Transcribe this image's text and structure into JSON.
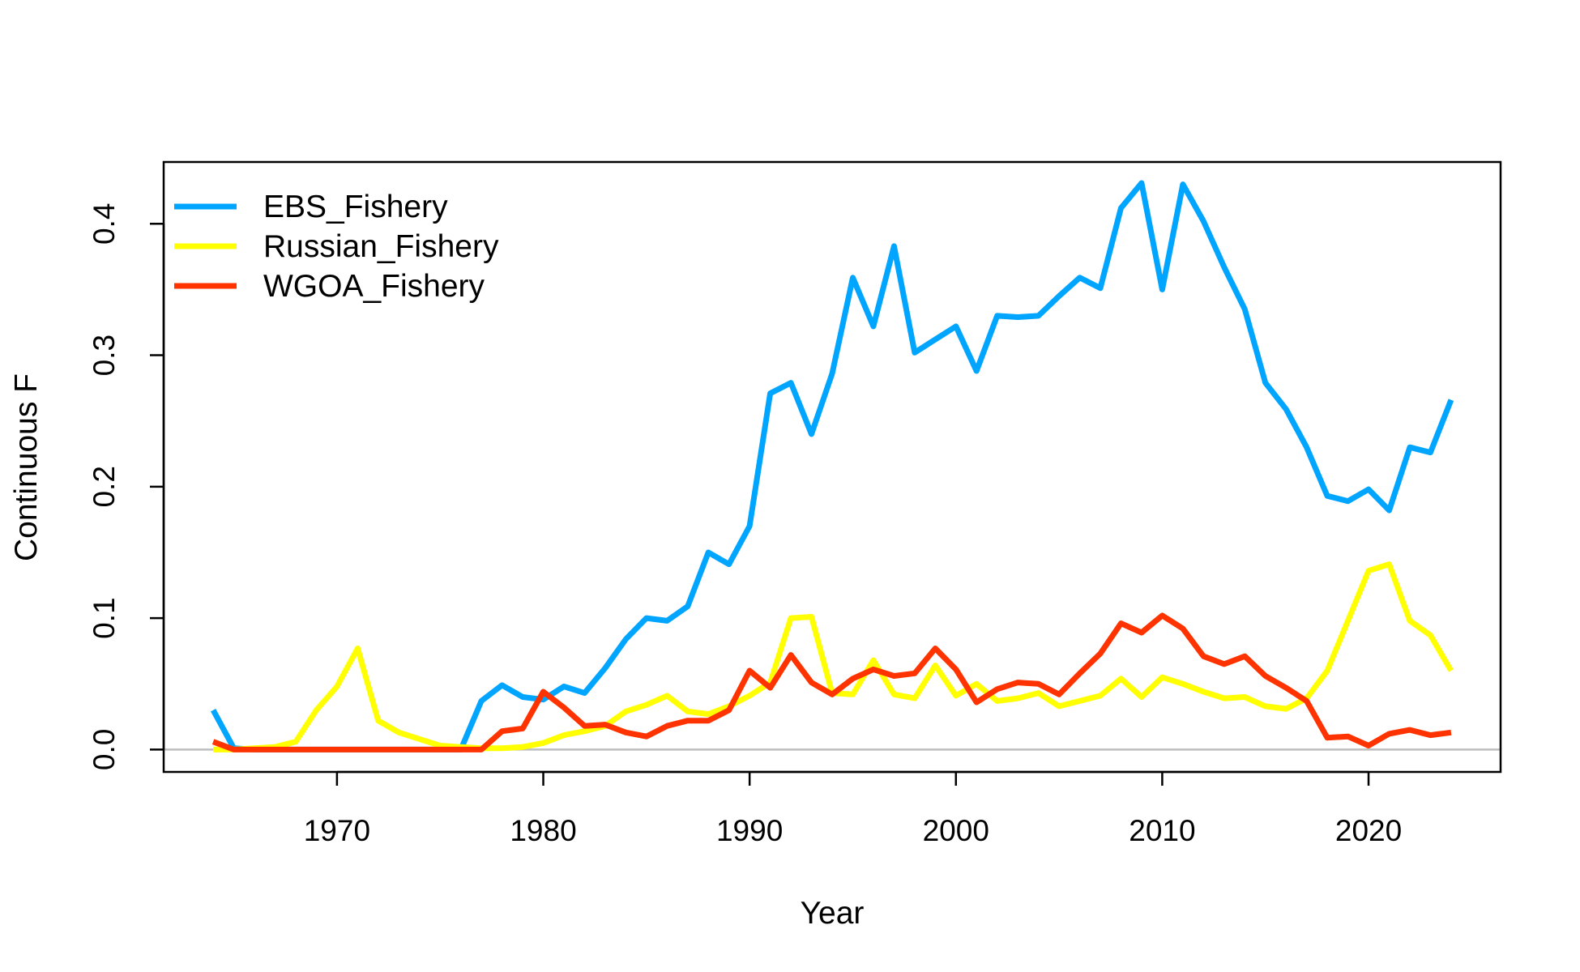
{
  "chart_data": {
    "type": "line",
    "title": "",
    "xlabel": "Year",
    "ylabel": "Continuous F",
    "xlim": [
      1961.6,
      2026.4
    ],
    "ylim": [
      -0.017,
      0.447
    ],
    "xticks": [
      1970,
      1980,
      1990,
      2000,
      2010,
      2020
    ],
    "yticks": [
      0.0,
      0.1,
      0.2,
      0.3,
      0.4
    ],
    "ytick_labels": [
      "0.0",
      "0.1",
      "0.2",
      "0.3",
      "0.4"
    ],
    "reference_line": {
      "y": 0,
      "color": "#BEBEBE"
    },
    "legend_position": "top-left",
    "grid": false,
    "x": [
      1964,
      1965,
      1966,
      1967,
      1968,
      1969,
      1970,
      1971,
      1972,
      1973,
      1974,
      1975,
      1976,
      1977,
      1978,
      1979,
      1980,
      1981,
      1982,
      1983,
      1984,
      1985,
      1986,
      1987,
      1988,
      1989,
      1990,
      1991,
      1992,
      1993,
      1994,
      1995,
      1996,
      1997,
      1998,
      1999,
      2000,
      2001,
      2002,
      2003,
      2004,
      2005,
      2006,
      2007,
      2008,
      2009,
      2010,
      2011,
      2012,
      2013,
      2014,
      2015,
      2016,
      2017,
      2018,
      2019,
      2020,
      2021,
      2022,
      2023,
      2024
    ],
    "series": [
      {
        "name": "EBS_Fishery",
        "color": "#00A5FF",
        "values": [
          0.03,
          0.001,
          0,
          0,
          0,
          0,
          0,
          0,
          0,
          0,
          0,
          0,
          0,
          0.037,
          0.049,
          0.04,
          0.038,
          0.048,
          0.043,
          0.062,
          0.084,
          0.1,
          0.098,
          0.109,
          0.15,
          0.141,
          0.17,
          0.271,
          0.279,
          0.24,
          0.286,
          0.359,
          0.322,
          0.383,
          0.302,
          0.312,
          0.322,
          0.288,
          0.33,
          0.329,
          0.33,
          0.345,
          0.359,
          0.351,
          0.412,
          0.431,
          0.35,
          0.43,
          0.402,
          0.367,
          0.335,
          0.279,
          0.259,
          0.23,
          0.193,
          0.189,
          0.198,
          0.182,
          0.23,
          0.226,
          0.266
        ]
      },
      {
        "name": "Russian_Fishery",
        "color": "#FFFF00",
        "values": [
          0,
          0,
          0.001,
          0.002,
          0.006,
          0.03,
          0.048,
          0.077,
          0.022,
          0.013,
          0.008,
          0.003,
          0.002,
          0.001,
          0.001,
          0.002,
          0.005,
          0.011,
          0.014,
          0.018,
          0.029,
          0.034,
          0.041,
          0.029,
          0.027,
          0.033,
          0.041,
          0.051,
          0.1,
          0.101,
          0.043,
          0.042,
          0.068,
          0.042,
          0.039,
          0.064,
          0.041,
          0.05,
          0.037,
          0.039,
          0.043,
          0.033,
          0.037,
          0.041,
          0.054,
          0.04,
          0.055,
          0.05,
          0.044,
          0.039,
          0.04,
          0.033,
          0.031,
          0.039,
          0.06,
          0.098,
          0.136,
          0.141,
          0.098,
          0.087,
          0.06
        ]
      },
      {
        "name": "WGOA_Fishery",
        "color": "#FF3300",
        "values": [
          0.006,
          0,
          0,
          0,
          0,
          0,
          0,
          0,
          0,
          0,
          0,
          0,
          0,
          0,
          0.014,
          0.016,
          0.044,
          0.032,
          0.018,
          0.019,
          0.013,
          0.01,
          0.018,
          0.022,
          0.022,
          0.03,
          0.06,
          0.047,
          0.072,
          0.051,
          0.042,
          0.054,
          0.061,
          0.056,
          0.058,
          0.077,
          0.061,
          0.036,
          0.046,
          0.051,
          0.05,
          0.042,
          0.058,
          0.073,
          0.096,
          0.089,
          0.102,
          0.092,
          0.071,
          0.065,
          0.071,
          0.056,
          0.047,
          0.037,
          0.009,
          0.01,
          0.003,
          0.012,
          0.015,
          0.011,
          0.013
        ]
      }
    ]
  }
}
